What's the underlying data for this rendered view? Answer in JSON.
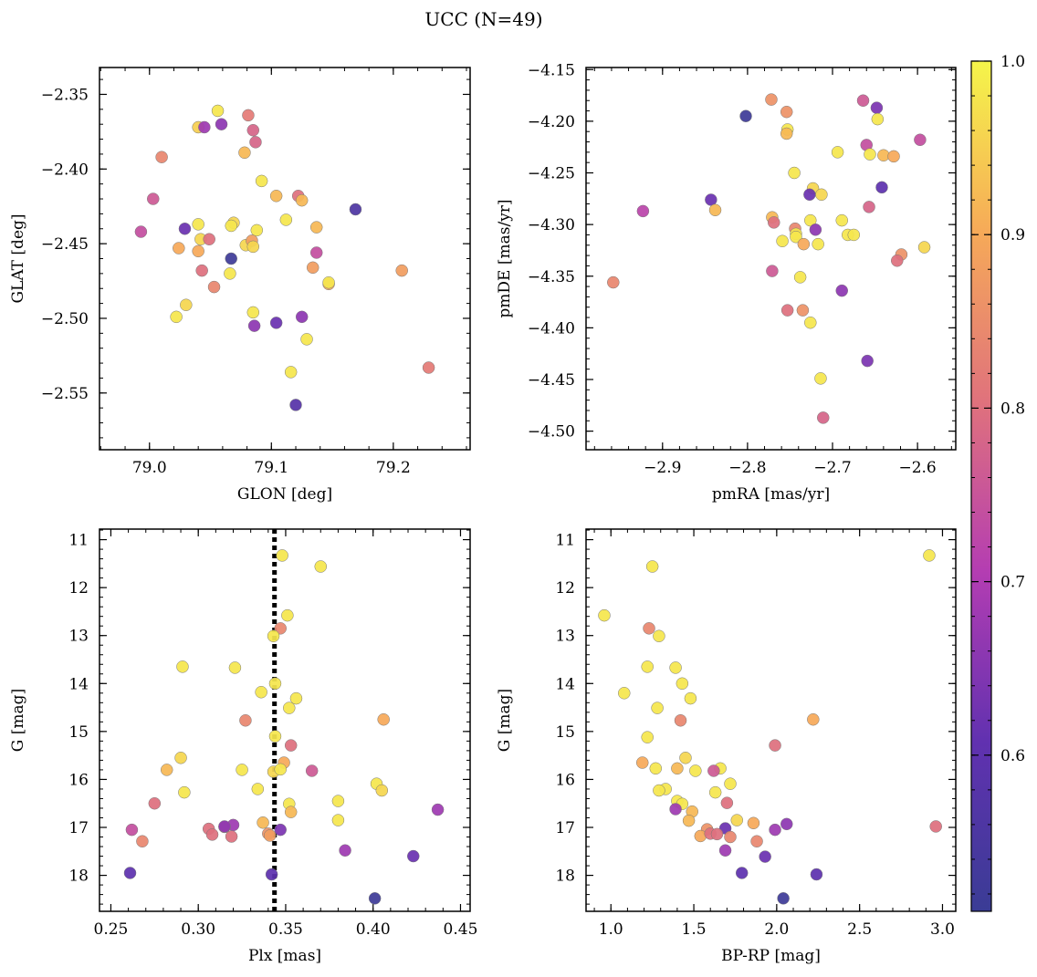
{
  "figure": {
    "title": "UCC (N=49)"
  },
  "colorbar": {
    "min": 0.51,
    "max": 1.0,
    "ticks": [
      0.6,
      0.7,
      0.8,
      0.9,
      1.0
    ],
    "tick_labels": [
      "0.6",
      "0.7",
      "0.8",
      "0.9",
      "1.0"
    ]
  },
  "chart_data": [
    {
      "id": "sky",
      "type": "scatter",
      "xlabel": "GLON [deg]",
      "ylabel": "GLAT [deg]",
      "xlim": [
        78.959,
        79.263
      ],
      "ylim": [
        -2.588,
        -2.332
      ],
      "invert_y": false,
      "xticks": [
        79.0,
        79.1,
        79.2
      ],
      "xtick_labels": [
        "79.0",
        "79.1",
        "79.2"
      ],
      "yticks": [
        -2.55,
        -2.5,
        -2.45,
        -2.4,
        -2.35
      ],
      "ytick_labels": [
        "−2.55",
        "−2.50",
        "−2.45",
        "−2.40",
        "−2.35"
      ],
      "points": [
        [
          79.056,
          -2.361,
          0.98
        ],
        [
          79.04,
          -2.372,
          0.95
        ],
        [
          79.045,
          -2.372,
          0.68
        ],
        [
          79.059,
          -2.37,
          0.66
        ],
        [
          79.081,
          -2.364,
          0.82
        ],
        [
          79.085,
          -2.374,
          0.78
        ],
        [
          79.087,
          -2.382,
          0.78
        ],
        [
          79.078,
          -2.389,
          0.92
        ],
        [
          79.01,
          -2.392,
          0.84
        ],
        [
          79.092,
          -2.408,
          0.98
        ],
        [
          79.003,
          -2.42,
          0.76
        ],
        [
          79.104,
          -2.418,
          0.92
        ],
        [
          79.122,
          -2.418,
          0.8
        ],
        [
          79.125,
          -2.421,
          0.92
        ],
        [
          79.169,
          -2.427,
          0.56
        ],
        [
          79.112,
          -2.434,
          0.98
        ],
        [
          79.069,
          -2.436,
          0.96
        ],
        [
          79.067,
          -2.438,
          0.98
        ],
        [
          79.04,
          -2.437,
          0.98
        ],
        [
          79.029,
          -2.44,
          0.62
        ],
        [
          79.088,
          -2.441,
          0.98
        ],
        [
          78.993,
          -2.442,
          0.74
        ],
        [
          79.137,
          -2.439,
          0.92
        ],
        [
          79.042,
          -2.447,
          0.96
        ],
        [
          79.049,
          -2.447,
          0.8
        ],
        [
          79.079,
          -2.451,
          0.96
        ],
        [
          79.084,
          -2.448,
          0.88
        ],
        [
          79.085,
          -2.452,
          0.96
        ],
        [
          79.024,
          -2.453,
          0.9
        ],
        [
          79.04,
          -2.455,
          0.9
        ],
        [
          79.137,
          -2.456,
          0.74
        ],
        [
          79.067,
          -2.46,
          0.52
        ],
        [
          79.043,
          -2.468,
          0.8
        ],
        [
          79.134,
          -2.466,
          0.88
        ],
        [
          79.207,
          -2.468,
          0.88
        ],
        [
          79.066,
          -2.47,
          0.98
        ],
        [
          79.147,
          -2.477,
          0.9
        ],
        [
          79.147,
          -2.476,
          0.98
        ],
        [
          79.053,
          -2.479,
          0.84
        ],
        [
          79.03,
          -2.491,
          0.96
        ],
        [
          79.022,
          -2.499,
          0.98
        ],
        [
          79.085,
          -2.496,
          0.98
        ],
        [
          79.086,
          -2.505,
          0.66
        ],
        [
          79.104,
          -2.503,
          0.62
        ],
        [
          79.125,
          -2.499,
          0.66
        ],
        [
          79.129,
          -2.514,
          0.98
        ],
        [
          79.116,
          -2.536,
          0.98
        ],
        [
          79.229,
          -2.533,
          0.82
        ],
        [
          79.12,
          -2.558,
          0.58
        ]
      ]
    },
    {
      "id": "pm",
      "type": "scatter",
      "xlabel": "pmRA [mas/yr]",
      "ylabel": "pmDE [mas/yr]",
      "xlim": [
        -2.99,
        -2.555
      ],
      "ylim": [
        -4.518,
        -4.148
      ],
      "invert_y": false,
      "xticks": [
        -2.9,
        -2.8,
        -2.7,
        -2.6
      ],
      "xtick_labels": [
        "−2.9",
        "−2.8",
        "−2.7",
        "−2.6"
      ],
      "yticks": [
        -4.5,
        -4.45,
        -4.4,
        -4.35,
        -4.3,
        -4.25,
        -4.2,
        -4.15
      ],
      "ytick_labels": [
        "−4.50",
        "−4.45",
        "−4.40",
        "−4.35",
        "−4.30",
        "−4.25",
        "−4.20",
        "−4.15"
      ],
      "points": [
        [
          -2.772,
          -4.179,
          0.86
        ],
        [
          -2.664,
          -4.18,
          0.76
        ],
        [
          -2.648,
          -4.187,
          0.64
        ],
        [
          -2.754,
          -4.191,
          0.86
        ],
        [
          -2.802,
          -4.195,
          0.52
        ],
        [
          -2.647,
          -4.198,
          0.98
        ],
        [
          -2.753,
          -4.208,
          0.98
        ],
        [
          -2.754,
          -4.212,
          0.92
        ],
        [
          -2.597,
          -4.218,
          0.74
        ],
        [
          -2.66,
          -4.223,
          0.74
        ],
        [
          -2.694,
          -4.23,
          0.98
        ],
        [
          -2.656,
          -4.232,
          0.98
        ],
        [
          -2.64,
          -4.233,
          0.92
        ],
        [
          -2.628,
          -4.234,
          0.9
        ],
        [
          -2.745,
          -4.25,
          0.98
        ],
        [
          -2.642,
          -4.264,
          0.6
        ],
        [
          -2.723,
          -4.265,
          0.96
        ],
        [
          -2.713,
          -4.271,
          0.96
        ],
        [
          -2.727,
          -4.271,
          0.62
        ],
        [
          -2.843,
          -4.276,
          0.62
        ],
        [
          -2.923,
          -4.287,
          0.72
        ],
        [
          -2.838,
          -4.286,
          0.92
        ],
        [
          -2.771,
          -4.293,
          0.92
        ],
        [
          -2.769,
          -4.298,
          0.8
        ],
        [
          -2.726,
          -4.296,
          0.98
        ],
        [
          -2.689,
          -4.296,
          0.98
        ],
        [
          -2.744,
          -4.304,
          0.84
        ],
        [
          -2.72,
          -4.305,
          0.66
        ],
        [
          -2.657,
          -4.283,
          0.78
        ],
        [
          -2.743,
          -4.309,
          0.98
        ],
        [
          -2.743,
          -4.312,
          0.98
        ],
        [
          -2.682,
          -4.31,
          0.98
        ],
        [
          -2.675,
          -4.31,
          0.98
        ],
        [
          -2.759,
          -4.316,
          0.98
        ],
        [
          -2.734,
          -4.319,
          0.9
        ],
        [
          -2.717,
          -4.319,
          0.98
        ],
        [
          -2.592,
          -4.322,
          0.96
        ],
        [
          -2.619,
          -4.329,
          0.86
        ],
        [
          -2.624,
          -4.335,
          0.8
        ],
        [
          -2.771,
          -4.345,
          0.76
        ],
        [
          -2.738,
          -4.351,
          0.98
        ],
        [
          -2.958,
          -4.356,
          0.84
        ],
        [
          -2.689,
          -4.364,
          0.66
        ],
        [
          -2.753,
          -4.383,
          0.8
        ],
        [
          -2.735,
          -4.383,
          0.86
        ],
        [
          -2.726,
          -4.395,
          0.98
        ],
        [
          -2.659,
          -4.432,
          0.64
        ],
        [
          -2.714,
          -4.449,
          0.98
        ],
        [
          -2.711,
          -4.487,
          0.78
        ]
      ]
    },
    {
      "id": "plx",
      "type": "scatter",
      "xlabel": "Plx [mas]",
      "ylabel": "G [mag]",
      "xlim": [
        0.2435,
        0.4555
      ],
      "ylim": [
        10.78,
        18.75
      ],
      "invert_y": true,
      "vline": 0.3436,
      "xticks": [
        0.25,
        0.3,
        0.35,
        0.4,
        0.45
      ],
      "xtick_labels": [
        "0.25",
        "0.30",
        "0.35",
        "0.40",
        "0.45"
      ],
      "yticks": [
        11,
        12,
        13,
        14,
        15,
        16,
        17,
        18
      ],
      "ytick_labels": [
        "11",
        "12",
        "13",
        "14",
        "15",
        "16",
        "17",
        "18"
      ],
      "points": [
        [
          0.348,
          11.33,
          0.98
        ],
        [
          0.37,
          11.56,
          0.98
        ],
        [
          0.351,
          12.58,
          0.98
        ],
        [
          0.347,
          12.85,
          0.84
        ],
        [
          0.343,
          13.01,
          0.98
        ],
        [
          0.291,
          13.65,
          0.98
        ],
        [
          0.321,
          13.67,
          0.98
        ],
        [
          0.344,
          14.0,
          0.98
        ],
        [
          0.336,
          14.18,
          0.98
        ],
        [
          0.356,
          14.31,
          0.98
        ],
        [
          0.352,
          14.51,
          0.98
        ],
        [
          0.406,
          14.75,
          0.9
        ],
        [
          0.327,
          14.77,
          0.84
        ],
        [
          0.344,
          15.1,
          0.98
        ],
        [
          0.353,
          15.29,
          0.8
        ],
        [
          0.29,
          15.55,
          0.96
        ],
        [
          0.349,
          15.65,
          0.9
        ],
        [
          0.282,
          15.8,
          0.92
        ],
        [
          0.325,
          15.8,
          0.98
        ],
        [
          0.343,
          15.84,
          0.96
        ],
        [
          0.347,
          15.79,
          0.98
        ],
        [
          0.365,
          15.82,
          0.76
        ],
        [
          0.402,
          16.09,
          0.98
        ],
        [
          0.405,
          16.23,
          0.96
        ],
        [
          0.334,
          16.2,
          0.98
        ],
        [
          0.292,
          16.27,
          0.98
        ],
        [
          0.38,
          16.45,
          0.98
        ],
        [
          0.275,
          16.5,
          0.8
        ],
        [
          0.352,
          16.51,
          0.98
        ],
        [
          0.353,
          16.68,
          0.92
        ],
        [
          0.437,
          16.63,
          0.68
        ],
        [
          0.38,
          16.85,
          0.98
        ],
        [
          0.337,
          16.9,
          0.92
        ],
        [
          0.32,
          16.95,
          0.68
        ],
        [
          0.347,
          17.05,
          0.64
        ],
        [
          0.262,
          17.05,
          0.74
        ],
        [
          0.306,
          17.03,
          0.8
        ],
        [
          0.315,
          16.99,
          0.78
        ],
        [
          0.308,
          17.15,
          0.8
        ],
        [
          0.34,
          17.13,
          0.86
        ],
        [
          0.341,
          17.17,
          0.88
        ],
        [
          0.319,
          17.19,
          0.8
        ],
        [
          0.268,
          17.29,
          0.84
        ],
        [
          0.384,
          17.48,
          0.68
        ],
        [
          0.423,
          17.6,
          0.62
        ],
        [
          0.261,
          17.95,
          0.6
        ],
        [
          0.342,
          17.98,
          0.6
        ],
        [
          0.401,
          18.48,
          0.52
        ],
        [
          0.315,
          16.98,
          0.66
        ]
      ]
    },
    {
      "id": "cmd",
      "type": "scatter",
      "xlabel": "BP-RP [mag]",
      "ylabel": "G [mag]",
      "xlim": [
        0.85,
        3.08
      ],
      "ylim": [
        10.78,
        18.75
      ],
      "invert_y": true,
      "xticks": [
        1.0,
        1.5,
        2.0,
        2.5,
        3.0
      ],
      "xtick_labels": [
        "1.0",
        "1.5",
        "2.0",
        "2.5",
        "3.0"
      ],
      "yticks": [
        11,
        12,
        13,
        14,
        15,
        16,
        17,
        18
      ],
      "ytick_labels": [
        "11",
        "12",
        "13",
        "14",
        "15",
        "16",
        "17",
        "18"
      ],
      "points": [
        [
          2.92,
          11.33,
          0.98
        ],
        [
          1.25,
          11.56,
          0.98
        ],
        [
          0.96,
          12.58,
          0.98
        ],
        [
          1.23,
          12.85,
          0.84
        ],
        [
          1.29,
          13.01,
          0.98
        ],
        [
          1.22,
          13.65,
          0.98
        ],
        [
          1.39,
          13.67,
          0.98
        ],
        [
          1.43,
          14.0,
          0.98
        ],
        [
          1.08,
          14.2,
          0.98
        ],
        [
          1.48,
          14.31,
          0.98
        ],
        [
          1.28,
          14.51,
          0.98
        ],
        [
          2.22,
          14.75,
          0.9
        ],
        [
          1.42,
          14.77,
          0.84
        ],
        [
          1.22,
          15.12,
          0.98
        ],
        [
          1.99,
          15.29,
          0.8
        ],
        [
          1.45,
          15.55,
          0.96
        ],
        [
          1.19,
          15.65,
          0.9
        ],
        [
          1.4,
          15.77,
          0.92
        ],
        [
          1.27,
          15.77,
          0.98
        ],
        [
          1.66,
          15.77,
          0.98
        ],
        [
          1.51,
          15.82,
          0.98
        ],
        [
          1.62,
          15.82,
          0.76
        ],
        [
          1.72,
          16.09,
          0.98
        ],
        [
          1.33,
          16.2,
          0.98
        ],
        [
          1.29,
          16.23,
          0.98
        ],
        [
          1.63,
          16.27,
          0.98
        ],
        [
          1.7,
          16.49,
          0.8
        ],
        [
          1.4,
          16.45,
          0.98
        ],
        [
          1.43,
          16.51,
          0.98
        ],
        [
          1.49,
          16.67,
          0.92
        ],
        [
          1.39,
          16.62,
          0.68
        ],
        [
          1.76,
          16.85,
          0.96
        ],
        [
          1.47,
          16.86,
          0.92
        ],
        [
          1.86,
          16.91,
          0.9
        ],
        [
          2.06,
          16.93,
          0.66
        ],
        [
          1.69,
          17.02,
          0.62
        ],
        [
          1.99,
          17.05,
          0.68
        ],
        [
          1.58,
          17.04,
          0.86
        ],
        [
          1.54,
          17.18,
          0.9
        ],
        [
          1.6,
          17.13,
          0.8
        ],
        [
          1.64,
          17.14,
          0.8
        ],
        [
          1.72,
          17.2,
          0.84
        ],
        [
          1.88,
          17.29,
          0.84
        ],
        [
          1.69,
          17.48,
          0.68
        ],
        [
          1.93,
          17.61,
          0.62
        ],
        [
          1.79,
          17.95,
          0.6
        ],
        [
          2.24,
          17.98,
          0.6
        ],
        [
          2.04,
          18.48,
          0.52
        ],
        [
          2.96,
          16.98,
          0.8
        ]
      ]
    }
  ]
}
